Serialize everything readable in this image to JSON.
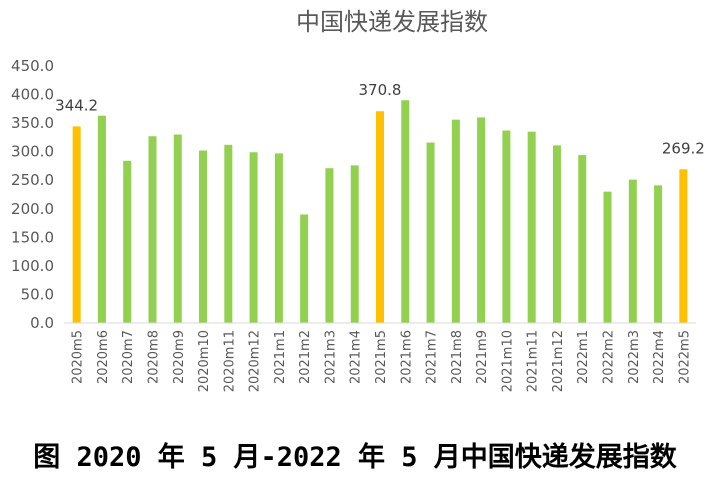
{
  "caption": "图 2020 年 5 月-2022 年 5 月中国快递发展指数",
  "colors": {
    "normal_bar": "#92D050",
    "highlight_bar": "#FFC000",
    "axis": "#D9D9D9"
  },
  "chart_data": {
    "type": "bar",
    "title": "中国快递发展指数",
    "xlabel": "",
    "ylabel": "",
    "ylim": [
      0,
      450
    ],
    "ytick_step": 50,
    "ytick_labels": [
      "0.0",
      "50.0",
      "100.0",
      "150.0",
      "200.0",
      "250.0",
      "300.0",
      "350.0",
      "400.0",
      "450.0"
    ],
    "categories": [
      "2020m5",
      "2020m6",
      "2020m7",
      "2020m8",
      "2020m9",
      "2020m10",
      "2020m11",
      "2020m12",
      "2021m1",
      "2021m2",
      "2021m3",
      "2021m4",
      "2021m5",
      "2021m6",
      "2021m7",
      "2021m8",
      "2021m9",
      "2021m10",
      "2021m11",
      "2021m12",
      "2022m1",
      "2022m2",
      "2022m3",
      "2022m4",
      "2022m5"
    ],
    "values": [
      344.2,
      363,
      284,
      327,
      330,
      302,
      312,
      299,
      297,
      190,
      271,
      276,
      370.8,
      390,
      316,
      356,
      360,
      337,
      335,
      311,
      294,
      230,
      251,
      241,
      269.2
    ],
    "highlight_categories": [
      "2020m5",
      "2021m5",
      "2022m5"
    ],
    "data_labels": [
      {
        "category": "2020m5",
        "text": "344.2"
      },
      {
        "category": "2021m5",
        "text": "370.8"
      },
      {
        "category": "2022m5",
        "text": "269.2"
      }
    ],
    "grid": false,
    "legend": "none"
  }
}
